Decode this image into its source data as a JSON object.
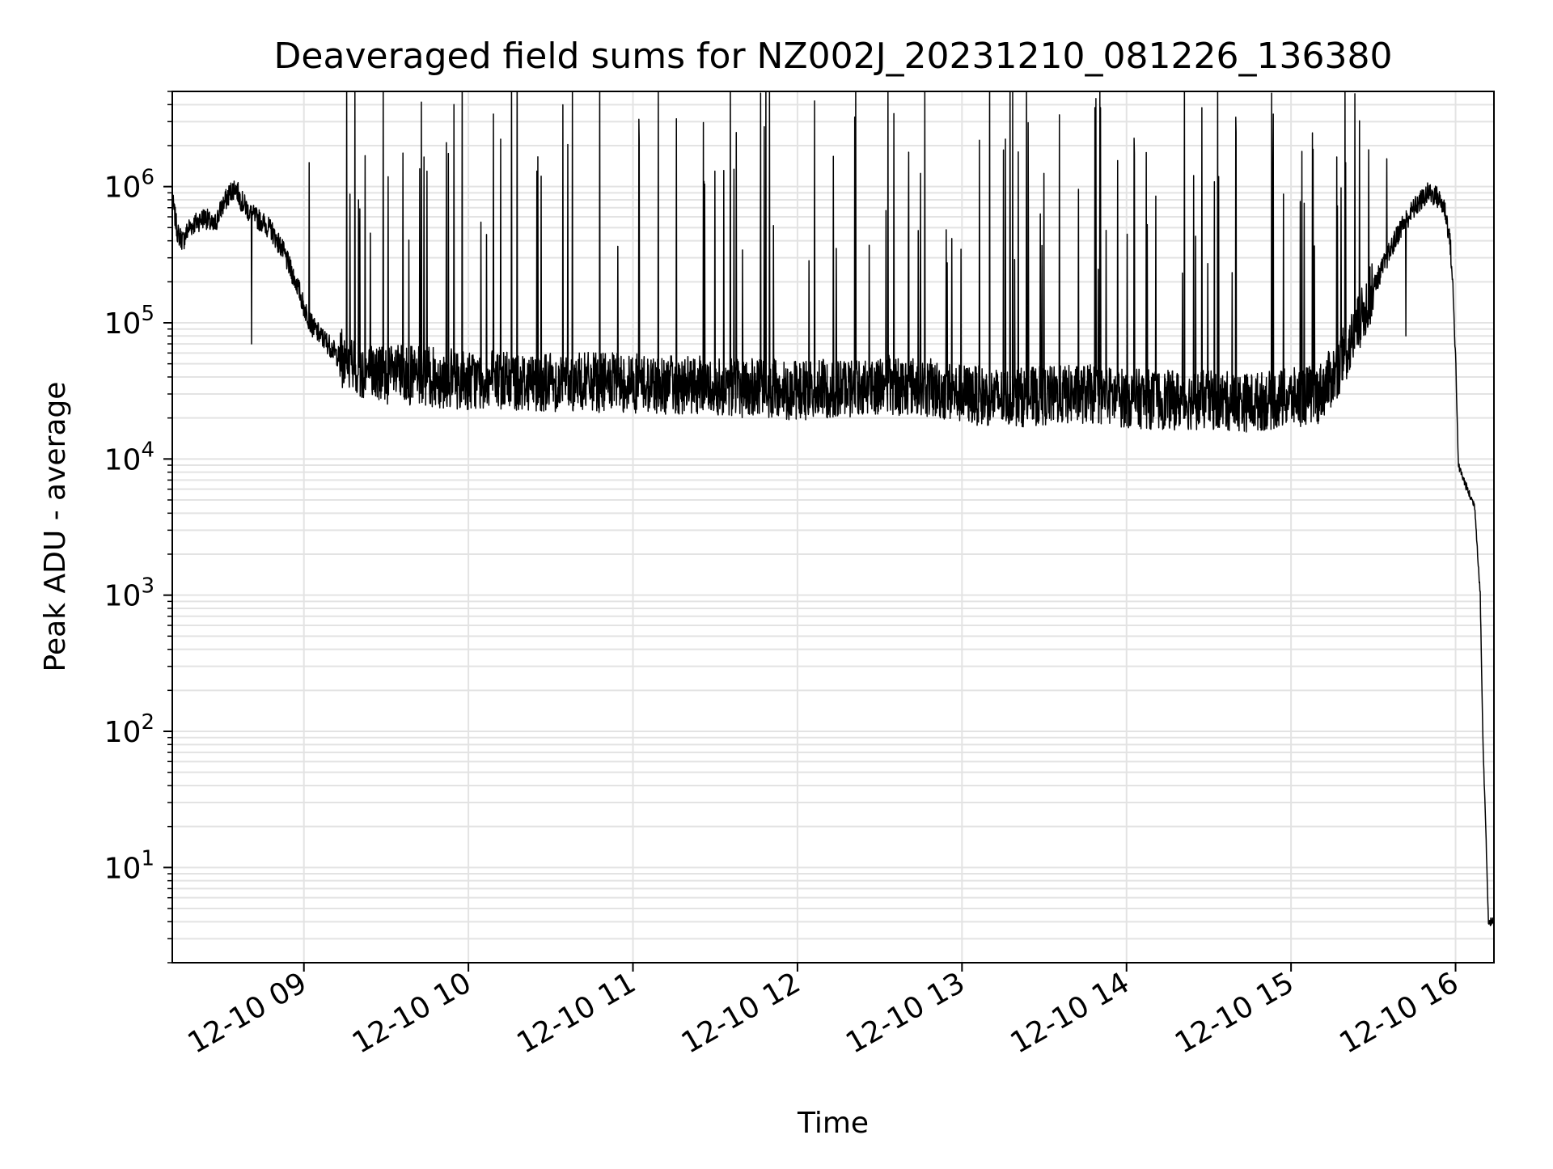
{
  "chart_data": {
    "type": "line",
    "title": "Deaveraged field sums for NZ002J_20231210_081226_136380",
    "xlabel": "Time",
    "ylabel": "Peak ADU - average",
    "yscale": "log",
    "grid": true,
    "x_range": [
      "2023-12-10 08:12",
      "2023-12-10 16:14"
    ],
    "ylim": [
      2,
      5000000
    ],
    "x_ticks": [
      {
        "t": "2023-12-10 09:00",
        "label": "12-10 09"
      },
      {
        "t": "2023-12-10 10:00",
        "label": "12-10 10"
      },
      {
        "t": "2023-12-10 11:00",
        "label": "12-10 11"
      },
      {
        "t": "2023-12-10 12:00",
        "label": "12-10 12"
      },
      {
        "t": "2023-12-10 13:00",
        "label": "12-10 13"
      },
      {
        "t": "2023-12-10 14:00",
        "label": "12-10 14"
      },
      {
        "t": "2023-12-10 15:00",
        "label": "12-10 15"
      },
      {
        "t": "2023-12-10 16:00",
        "label": "12-10 16"
      }
    ],
    "y_ticks": [
      {
        "v": 10,
        "base": "10",
        "exp": "1"
      },
      {
        "v": 100,
        "base": "10",
        "exp": "2"
      },
      {
        "v": 1000,
        "base": "10",
        "exp": "3"
      },
      {
        "v": 10000,
        "base": "10",
        "exp": "4"
      },
      {
        "v": 100000,
        "base": "10",
        "exp": "5"
      },
      {
        "v": 1000000,
        "base": "10",
        "exp": "6"
      }
    ],
    "series": [
      {
        "color": "#000000",
        "x": [
          "2023-12-10 08:12",
          "2023-12-10 08:14",
          "2023-12-10 08:16",
          "2023-12-10 08:18",
          "2023-12-10 08:21",
          "2023-12-10 08:24",
          "2023-12-10 08:27",
          "2023-12-10 08:30",
          "2023-12-10 08:33",
          "2023-12-10 08:35",
          "2023-12-10 08:37",
          "2023-12-10 08:39",
          "2023-12-10 08:40",
          "2023-12-10 08:42",
          "2023-12-10 08:45",
          "2023-12-10 08:48",
          "2023-12-10 08:52",
          "2023-12-10 08:55",
          "2023-12-10 08:58",
          "2023-12-10 09:00",
          "2023-12-10 09:03",
          "2023-12-10 09:06",
          "2023-12-10 09:09",
          "2023-12-10 09:12",
          "2023-12-10 09:15",
          "2023-12-10 09:20",
          "2023-12-10 09:30",
          "2023-12-10 09:45",
          "2023-12-10 10:00",
          "2023-12-10 10:30",
          "2023-12-10 11:00",
          "2023-12-10 11:30",
          "2023-12-10 12:00",
          "2023-12-10 12:15",
          "2023-12-10 12:30",
          "2023-12-10 12:45",
          "2023-12-10 13:00",
          "2023-12-10 13:15",
          "2023-12-10 13:30",
          "2023-12-10 13:45",
          "2023-12-10 14:00",
          "2023-12-10 14:15",
          "2023-12-10 14:30",
          "2023-12-10 14:45",
          "2023-12-10 15:00",
          "2023-12-10 15:10",
          "2023-12-10 15:15",
          "2023-12-10 15:20",
          "2023-12-10 15:25",
          "2023-12-10 15:30",
          "2023-12-10 15:35",
          "2023-12-10 15:40",
          "2023-12-10 15:45",
          "2023-12-10 15:50",
          "2023-12-10 15:53",
          "2023-12-10 15:56",
          "2023-12-10 15:58",
          "2023-12-10 15:59",
          "2023-12-10 16:00",
          "2023-12-10 16:01",
          "2023-12-10 16:03",
          "2023-12-10 16:05",
          "2023-12-10 16:07",
          "2023-12-10 16:09",
          "2023-12-10 16:10",
          "2023-12-10 16:11",
          "2023-12-10 16:12",
          "2023-12-10 16:12",
          "2023-12-10 16:13"
        ],
        "y": [
          800000,
          450000,
          400000,
          500000,
          550000,
          600000,
          500000,
          700000,
          900000,
          1000000,
          800000,
          700000,
          650000,
          600000,
          550000,
          480000,
          350000,
          250000,
          180000,
          130000,
          95000,
          80000,
          70000,
          58000,
          52000,
          45000,
          42000,
          40000,
          38000,
          37000,
          36000,
          34000,
          32000,
          33000,
          35000,
          34000,
          30000,
          28000,
          29000,
          30000,
          28000,
          27000,
          27000,
          26000,
          28000,
          30000,
          40000,
          60000,
          100000,
          180000,
          300000,
          500000,
          700000,
          900000,
          850000,
          700000,
          400000,
          180000,
          60000,
          9000,
          7000,
          5500,
          4500,
          1000,
          80,
          20,
          4,
          4,
          4
        ],
        "spikes": [
          {
            "t": "2023-12-10 08:41",
            "v": 70000
          },
          {
            "t": "2023-12-10 09:02",
            "v": 1500000
          },
          {
            "t": "2023-12-10 09:20",
            "v": 800000
          },
          {
            "t": "2023-12-10 09:45",
            "v": 1300000
          },
          {
            "t": "2023-12-10 09:52",
            "v": 2100000
          },
          {
            "t": "2023-12-10 10:25",
            "v": 1300000
          },
          {
            "t": "2023-12-10 11:30",
            "v": 1300000
          },
          {
            "t": "2023-12-10 12:45",
            "v": 1250000
          },
          {
            "t": "2023-12-10 13:30",
            "v": 1250000
          },
          {
            "t": "2023-12-10 14:40",
            "v": 2500000
          },
          {
            "t": "2023-12-10 15:20",
            "v": 1500000
          },
          {
            "t": "2023-12-10 15:35",
            "v": 1600000
          },
          {
            "t": "2023-12-10 15:42",
            "v": 80000
          }
        ]
      }
    ]
  }
}
